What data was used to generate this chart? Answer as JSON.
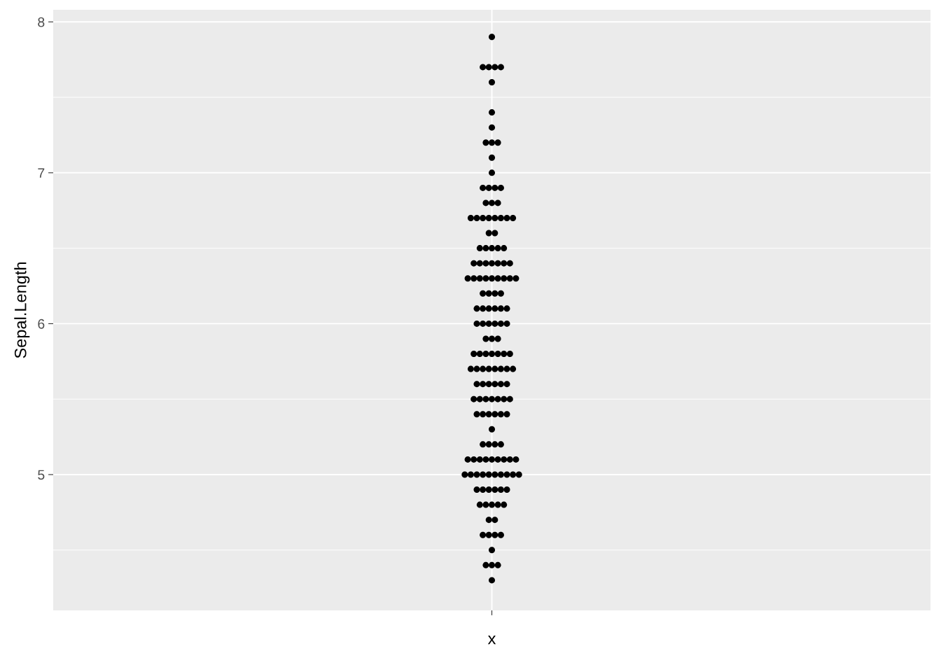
{
  "chart_data": {
    "type": "scatter",
    "xlabel": "x",
    "ylabel": "Sepal.Length",
    "categories": [
      null
    ],
    "series": [
      {
        "color": "#000000",
        "x": [
          null,
          null,
          null,
          null,
          null,
          null,
          null,
          null,
          null,
          null,
          null,
          null,
          null,
          null,
          null,
          null,
          null,
          null,
          null,
          null,
          null,
          null,
          null,
          null,
          null,
          null,
          null,
          null,
          null,
          null,
          null,
          null,
          null,
          null,
          null,
          null,
          null,
          null,
          null,
          null,
          null,
          null,
          null,
          null,
          null,
          null,
          null,
          null,
          null,
          null,
          null,
          null,
          null,
          null,
          null,
          null,
          null,
          null,
          null,
          null,
          null,
          null,
          null,
          null,
          null,
          null,
          null,
          null,
          null,
          null,
          null,
          null,
          null,
          null,
          null,
          null,
          null,
          null,
          null,
          null,
          null,
          null,
          null,
          null,
          null,
          null,
          null,
          null,
          null,
          null,
          null,
          null,
          null,
          null,
          null,
          null,
          null,
          null,
          null,
          null,
          null,
          null,
          null,
          null,
          null,
          null,
          null,
          null,
          null,
          null,
          null,
          null,
          null,
          null,
          null,
          null,
          null,
          null,
          null,
          null,
          null,
          null,
          null,
          null,
          null,
          null,
          null,
          null,
          null,
          null,
          null,
          null,
          null,
          null,
          null,
          null,
          null,
          null,
          null,
          null,
          null,
          null,
          null,
          null,
          null,
          null,
          null,
          null,
          null,
          null
        ],
        "values": [
          4.3,
          4.4,
          4.4,
          4.4,
          4.5,
          4.6,
          4.6,
          4.6,
          4.6,
          4.7,
          4.7,
          4.8,
          4.8,
          4.8,
          4.8,
          4.8,
          4.9,
          4.9,
          4.9,
          4.9,
          4.9,
          4.9,
          5.0,
          5.0,
          5.0,
          5.0,
          5.0,
          5.0,
          5.0,
          5.0,
          5.0,
          5.0,
          5.1,
          5.1,
          5.1,
          5.1,
          5.1,
          5.1,
          5.1,
          5.1,
          5.1,
          5.2,
          5.2,
          5.2,
          5.2,
          5.3,
          5.4,
          5.4,
          5.4,
          5.4,
          5.4,
          5.4,
          5.5,
          5.5,
          5.5,
          5.5,
          5.5,
          5.5,
          5.5,
          5.6,
          5.6,
          5.6,
          5.6,
          5.6,
          5.6,
          5.7,
          5.7,
          5.7,
          5.7,
          5.7,
          5.7,
          5.7,
          5.7,
          5.8,
          5.8,
          5.8,
          5.8,
          5.8,
          5.8,
          5.8,
          5.9,
          5.9,
          5.9,
          6.0,
          6.0,
          6.0,
          6.0,
          6.0,
          6.0,
          6.1,
          6.1,
          6.1,
          6.1,
          6.1,
          6.1,
          6.2,
          6.2,
          6.2,
          6.2,
          6.3,
          6.3,
          6.3,
          6.3,
          6.3,
          6.3,
          6.3,
          6.3,
          6.3,
          6.4,
          6.4,
          6.4,
          6.4,
          6.4,
          6.4,
          6.4,
          6.5,
          6.5,
          6.5,
          6.5,
          6.5,
          6.6,
          6.6,
          6.7,
          6.7,
          6.7,
          6.7,
          6.7,
          6.7,
          6.7,
          6.7,
          6.8,
          6.8,
          6.8,
          6.9,
          6.9,
          6.9,
          6.9,
          7.0,
          7.1,
          7.2,
          7.2,
          7.2,
          7.3,
          7.4,
          7.6,
          7.7,
          7.7,
          7.7,
          7.7,
          7.9
        ]
      }
    ],
    "ylim": [
      4.1,
      8.08
    ],
    "yticks": [
      {
        "value": 4.5,
        "label": null
      },
      5,
      {
        "value": 5.5,
        "label": null
      },
      6,
      {
        "value": 6.5,
        "label": null
      },
      7,
      {
        "value": 7.5,
        "label": null
      },
      8
    ],
    "grid": true,
    "marker": "circle",
    "legend": false
  }
}
